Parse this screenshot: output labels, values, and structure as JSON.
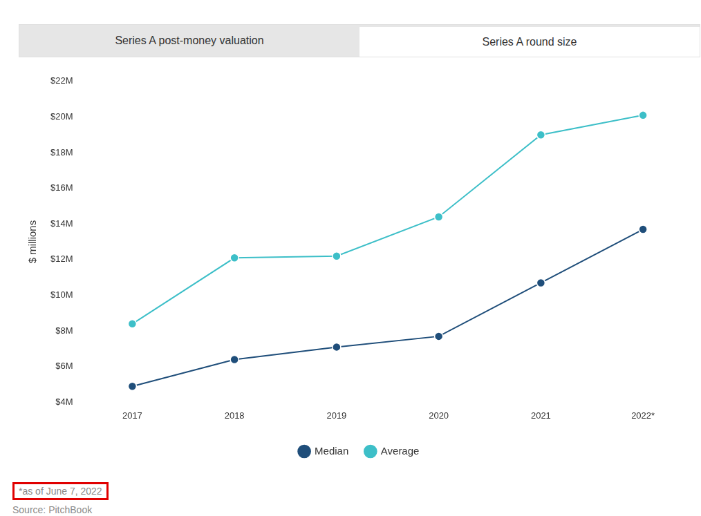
{
  "tabs": [
    "Series A post-money valuation",
    "Series A round size"
  ],
  "chart_data": {
    "type": "line",
    "categories": [
      "2017",
      "2018",
      "2019",
      "2020",
      "2021",
      "2022*"
    ],
    "series": [
      {
        "name": "Median",
        "color": "#1f4e7a",
        "values": [
          4.9,
          6.4,
          7.1,
          7.7,
          10.7,
          13.7
        ]
      },
      {
        "name": "Average",
        "color": "#3dbfc8",
        "values": [
          8.4,
          12.1,
          12.2,
          14.4,
          19.0,
          20.1
        ]
      }
    ],
    "y_label": "$ millions",
    "ylim": [
      4,
      22
    ],
    "yticks": [
      {
        "value": 4,
        "label": "$4M"
      },
      {
        "value": 6,
        "label": "$6M"
      },
      {
        "value": 8,
        "label": "$8M"
      },
      {
        "value": 10,
        "label": "$10M"
      },
      {
        "value": 12,
        "label": "$12M"
      },
      {
        "value": 14,
        "label": "$14M"
      },
      {
        "value": 16,
        "label": "$16M"
      },
      {
        "value": 18,
        "label": "$18M"
      },
      {
        "value": 20,
        "label": "$20M"
      },
      {
        "value": 22,
        "label": "$22M"
      }
    ],
    "grid": false,
    "legend": "bottom",
    "marker": "circle",
    "annotations": [
      "*as of June 7, 2022",
      "Source: PitchBook"
    ]
  }
}
